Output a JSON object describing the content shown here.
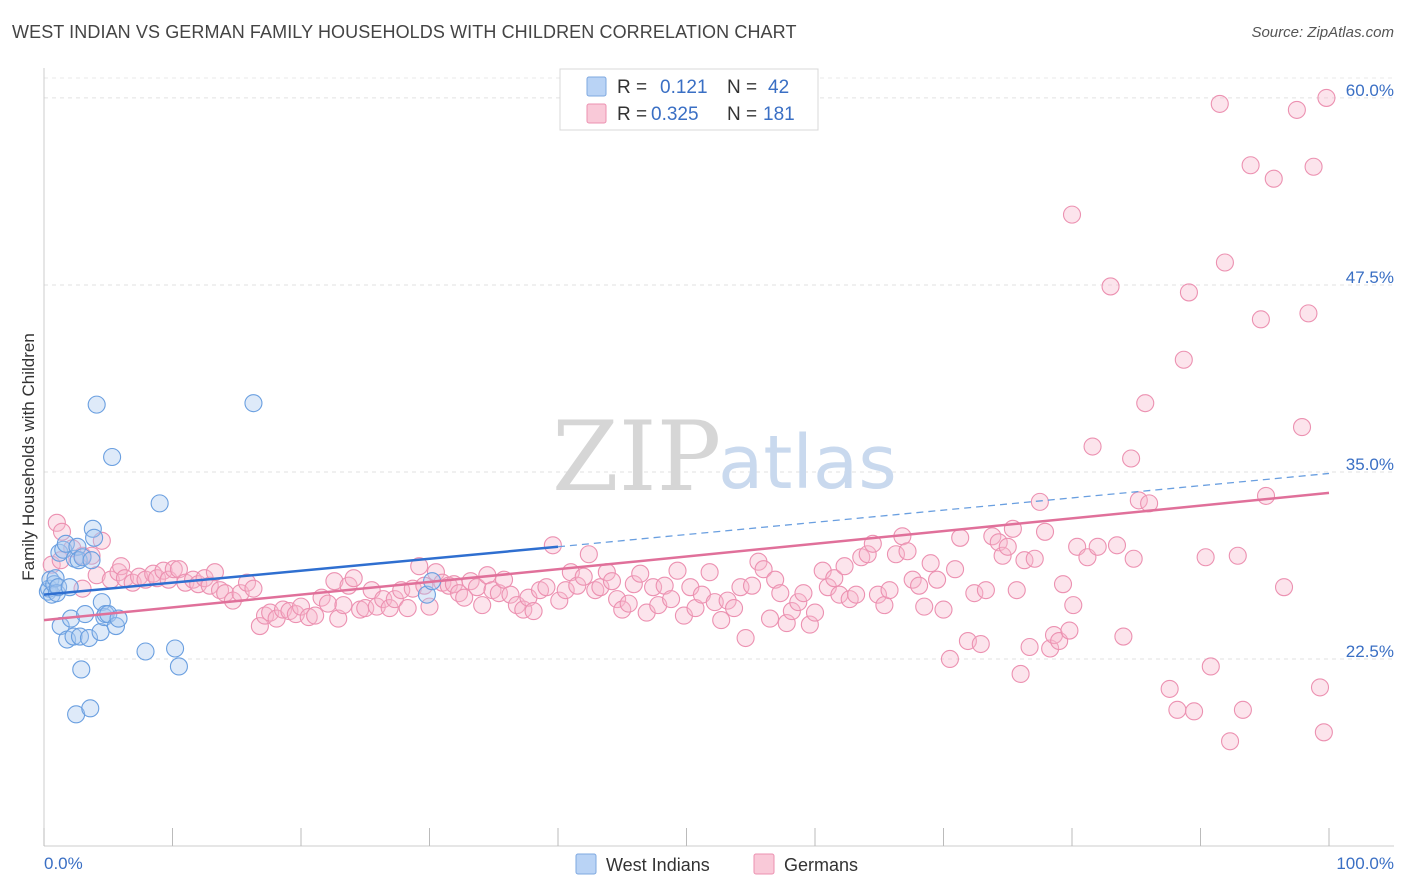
{
  "header": {
    "title": "WEST INDIAN VS GERMAN FAMILY HOUSEHOLDS WITH CHILDREN CORRELATION CHART",
    "source": "Source: ZipAtlas.com"
  },
  "watermark": {
    "zip": "ZIP",
    "atlas": "atlas"
  },
  "legend": {
    "rows": [
      {
        "r_label": "R =",
        "r_value": "0.121",
        "n_label": "N =",
        "n_value": "42",
        "color": "#a8c8f0"
      },
      {
        "r_label": "R =",
        "r_value": "0.325",
        "n_label": "N =",
        "n_value": "181",
        "color": "#f7b8cc"
      }
    ]
  },
  "bottom_legend": {
    "items": [
      {
        "label": "West Indians"
      },
      {
        "label": "Germans"
      }
    ]
  },
  "chart_data": {
    "type": "scatter",
    "title": "WEST INDIAN VS GERMAN FAMILY HOUSEHOLDS WITH CHILDREN CORRELATION CHART",
    "xlabel": "",
    "ylabel": "Family Households with Children",
    "xlim": [
      0,
      100
    ],
    "ylim": [
      10,
      62
    ],
    "x_tick_labels": [
      "0.0%",
      "100.0%"
    ],
    "y_ticks": [
      22.5,
      35.0,
      47.5,
      60.0
    ],
    "y_tick_labels": [
      "22.5%",
      "35.0%",
      "47.5%",
      "60.0%"
    ],
    "grid": true,
    "colors": {
      "west_indian": "#6a9fe0",
      "west_indian_fill": "#a8c8f0",
      "german": "#e87aa0",
      "german_fill": "#f7b8cc",
      "tick": "#3a6fc4"
    },
    "series": [
      {
        "name": "West Indians",
        "trend": {
          "x": [
            0,
            40
          ],
          "y": [
            26.8,
            30.0
          ],
          "dashed_extension": {
            "x": [
              40,
              100
            ],
            "y": [
              30.0,
              34.9
            ]
          }
        },
        "points": [
          [
            0.3,
            27.0
          ],
          [
            0.4,
            27.2
          ],
          [
            0.5,
            27.8
          ],
          [
            0.6,
            26.8
          ],
          [
            0.8,
            27.5
          ],
          [
            0.9,
            27.9
          ],
          [
            1.0,
            26.9
          ],
          [
            1.1,
            27.3
          ],
          [
            1.2,
            29.6
          ],
          [
            1.3,
            24.7
          ],
          [
            1.5,
            29.8
          ],
          [
            1.7,
            30.2
          ],
          [
            1.8,
            23.8
          ],
          [
            2.0,
            27.3
          ],
          [
            2.1,
            25.2
          ],
          [
            2.3,
            24.0
          ],
          [
            2.4,
            29.2
          ],
          [
            2.5,
            18.8
          ],
          [
            2.6,
            30.0
          ],
          [
            2.7,
            29.1
          ],
          [
            2.8,
            24.0
          ],
          [
            2.9,
            21.8
          ],
          [
            3.0,
            29.3
          ],
          [
            3.2,
            25.5
          ],
          [
            3.5,
            23.9
          ],
          [
            3.6,
            19.2
          ],
          [
            3.7,
            29.1
          ],
          [
            3.8,
            31.2
          ],
          [
            3.9,
            30.6
          ],
          [
            4.1,
            39.5
          ],
          [
            4.4,
            24.3
          ],
          [
            4.5,
            26.3
          ],
          [
            4.7,
            25.3
          ],
          [
            4.8,
            25.5
          ],
          [
            5.0,
            25.5
          ],
          [
            5.3,
            36.0
          ],
          [
            5.6,
            24.7
          ],
          [
            5.8,
            25.2
          ],
          [
            7.9,
            23.0
          ],
          [
            9.0,
            32.9
          ],
          [
            10.2,
            23.2
          ],
          [
            10.5,
            22.0
          ],
          [
            16.3,
            39.6
          ],
          [
            29.8,
            26.8
          ],
          [
            30.2,
            27.7
          ]
        ]
      },
      {
        "name": "Germans",
        "trend": {
          "x": [
            0,
            100
          ],
          "y": [
            25.1,
            33.6
          ]
        },
        "points": [
          [
            0.6,
            28.8
          ],
          [
            1.0,
            31.6
          ],
          [
            1.3,
            29.1
          ],
          [
            1.4,
            31.0
          ],
          [
            2.2,
            29.9
          ],
          [
            3.0,
            29.4
          ],
          [
            3.0,
            27.2
          ],
          [
            3.7,
            29.4
          ],
          [
            4.1,
            28.1
          ],
          [
            4.5,
            30.4
          ],
          [
            5.2,
            27.8
          ],
          [
            5.8,
            28.3
          ],
          [
            6.0,
            28.7
          ],
          [
            6.3,
            27.9
          ],
          [
            6.9,
            27.6
          ],
          [
            7.4,
            28.0
          ],
          [
            7.9,
            27.8
          ],
          [
            8.5,
            28.2
          ],
          [
            8.8,
            27.9
          ],
          [
            9.3,
            28.4
          ],
          [
            9.7,
            27.8
          ],
          [
            10.1,
            28.5
          ],
          [
            10.5,
            28.5
          ],
          [
            11.0,
            27.6
          ],
          [
            11.6,
            27.8
          ],
          [
            12.0,
            27.5
          ],
          [
            12.5,
            27.9
          ],
          [
            12.9,
            27.4
          ],
          [
            13.3,
            28.3
          ],
          [
            13.7,
            27.1
          ],
          [
            14.1,
            26.9
          ],
          [
            14.7,
            26.4
          ],
          [
            15.3,
            26.9
          ],
          [
            15.8,
            27.6
          ],
          [
            16.3,
            27.2
          ],
          [
            16.8,
            24.7
          ],
          [
            17.2,
            25.4
          ],
          [
            17.6,
            25.6
          ],
          [
            18.1,
            25.2
          ],
          [
            18.6,
            25.8
          ],
          [
            19.1,
            25.7
          ],
          [
            19.6,
            25.5
          ],
          [
            20.0,
            26.0
          ],
          [
            20.6,
            25.3
          ],
          [
            21.1,
            25.4
          ],
          [
            21.6,
            26.6
          ],
          [
            22.1,
            26.2
          ],
          [
            22.6,
            27.7
          ],
          [
            22.9,
            25.2
          ],
          [
            23.3,
            26.1
          ],
          [
            23.7,
            27.4
          ],
          [
            24.1,
            27.9
          ],
          [
            24.6,
            25.8
          ],
          [
            25.0,
            25.9
          ],
          [
            25.5,
            27.1
          ],
          [
            25.9,
            26.0
          ],
          [
            26.4,
            26.5
          ],
          [
            26.9,
            25.9
          ],
          [
            27.3,
            26.5
          ],
          [
            27.8,
            27.1
          ],
          [
            28.3,
            25.9
          ],
          [
            28.7,
            27.2
          ],
          [
            29.2,
            28.7
          ],
          [
            29.6,
            27.4
          ],
          [
            30.0,
            26.0
          ],
          [
            30.5,
            28.3
          ],
          [
            31.0,
            27.6
          ],
          [
            31.5,
            27.4
          ],
          [
            31.9,
            27.5
          ],
          [
            32.3,
            26.9
          ],
          [
            32.7,
            26.6
          ],
          [
            33.2,
            27.7
          ],
          [
            33.7,
            27.3
          ],
          [
            34.1,
            26.1
          ],
          [
            34.5,
            28.1
          ],
          [
            34.9,
            27.1
          ],
          [
            35.4,
            26.9
          ],
          [
            35.8,
            27.8
          ],
          [
            36.3,
            26.8
          ],
          [
            36.8,
            26.1
          ],
          [
            37.3,
            25.8
          ],
          [
            37.7,
            26.6
          ],
          [
            38.1,
            25.7
          ],
          [
            38.6,
            27.1
          ],
          [
            39.1,
            27.3
          ],
          [
            39.6,
            30.1
          ],
          [
            40.1,
            26.4
          ],
          [
            40.6,
            27.1
          ],
          [
            41.0,
            28.3
          ],
          [
            41.5,
            27.4
          ],
          [
            42.0,
            28.0
          ],
          [
            42.4,
            29.5
          ],
          [
            42.9,
            27.1
          ],
          [
            43.3,
            27.3
          ],
          [
            43.8,
            28.3
          ],
          [
            44.2,
            27.7
          ],
          [
            44.6,
            26.5
          ],
          [
            45.0,
            25.8
          ],
          [
            45.5,
            26.2
          ],
          [
            45.9,
            27.5
          ],
          [
            46.4,
            28.2
          ],
          [
            46.9,
            25.6
          ],
          [
            47.4,
            27.3
          ],
          [
            47.8,
            26.1
          ],
          [
            48.3,
            27.4
          ],
          [
            48.8,
            26.5
          ],
          [
            49.3,
            28.4
          ],
          [
            49.8,
            25.4
          ],
          [
            50.3,
            27.3
          ],
          [
            50.7,
            25.9
          ],
          [
            51.2,
            26.8
          ],
          [
            51.8,
            28.3
          ],
          [
            52.2,
            26.3
          ],
          [
            52.7,
            25.1
          ],
          [
            53.2,
            26.4
          ],
          [
            53.7,
            25.9
          ],
          [
            54.2,
            27.3
          ],
          [
            54.6,
            23.9
          ],
          [
            55.1,
            27.4
          ],
          [
            55.6,
            29.0
          ],
          [
            56.0,
            28.5
          ],
          [
            56.5,
            25.2
          ],
          [
            56.9,
            27.8
          ],
          [
            57.3,
            26.9
          ],
          [
            57.8,
            24.9
          ],
          [
            58.2,
            25.7
          ],
          [
            58.7,
            26.3
          ],
          [
            59.1,
            26.9
          ],
          [
            59.6,
            24.8
          ],
          [
            60.0,
            25.6
          ],
          [
            60.6,
            28.4
          ],
          [
            61.0,
            27.3
          ],
          [
            61.5,
            27.9
          ],
          [
            61.9,
            26.8
          ],
          [
            62.3,
            28.7
          ],
          [
            62.7,
            26.5
          ],
          [
            63.2,
            26.8
          ],
          [
            63.6,
            29.3
          ],
          [
            64.1,
            29.5
          ],
          [
            64.5,
            30.2
          ],
          [
            64.9,
            26.8
          ],
          [
            65.4,
            26.1
          ],
          [
            65.8,
            27.1
          ],
          [
            66.3,
            29.5
          ],
          [
            66.8,
            30.7
          ],
          [
            67.2,
            29.7
          ],
          [
            67.6,
            27.8
          ],
          [
            68.1,
            27.4
          ],
          [
            68.5,
            26.0
          ],
          [
            69.0,
            28.9
          ],
          [
            69.5,
            27.8
          ],
          [
            70.0,
            25.8
          ],
          [
            70.5,
            22.5
          ],
          [
            70.9,
            28.5
          ],
          [
            71.3,
            30.6
          ],
          [
            71.9,
            23.7
          ],
          [
            72.4,
            26.9
          ],
          [
            72.9,
            23.5
          ],
          [
            73.3,
            27.1
          ],
          [
            73.8,
            30.7
          ],
          [
            74.3,
            30.3
          ],
          [
            74.6,
            29.4
          ],
          [
            75.0,
            30.0
          ],
          [
            75.4,
            31.2
          ],
          [
            75.7,
            27.1
          ],
          [
            76.0,
            21.5
          ],
          [
            76.3,
            29.1
          ],
          [
            76.7,
            23.3
          ],
          [
            77.1,
            29.2
          ],
          [
            77.5,
            33.0
          ],
          [
            77.9,
            31.0
          ],
          [
            78.3,
            23.2
          ],
          [
            78.6,
            24.1
          ],
          [
            79.0,
            23.7
          ],
          [
            79.3,
            27.5
          ],
          [
            79.8,
            24.4
          ],
          [
            80.1,
            26.1
          ],
          [
            80.4,
            30.0
          ],
          [
            81.2,
            29.3
          ],
          [
            81.6,
            36.7
          ],
          [
            82.0,
            30.0
          ],
          [
            83.0,
            47.4
          ],
          [
            83.5,
            30.1
          ],
          [
            84.0,
            24.0
          ],
          [
            84.6,
            35.9
          ],
          [
            84.8,
            29.2
          ],
          [
            85.2,
            33.1
          ],
          [
            85.7,
            39.6
          ],
          [
            86.0,
            32.9
          ],
          [
            87.6,
            20.5
          ],
          [
            88.2,
            19.1
          ],
          [
            88.7,
            42.5
          ],
          [
            89.1,
            47.0
          ],
          [
            89.5,
            19.0
          ],
          [
            90.4,
            29.3
          ],
          [
            90.8,
            22.0
          ],
          [
            91.5,
            59.6
          ],
          [
            91.9,
            49.0
          ],
          [
            92.3,
            17.0
          ],
          [
            92.9,
            29.4
          ],
          [
            93.3,
            19.1
          ],
          [
            93.9,
            55.5
          ],
          [
            94.7,
            45.2
          ],
          [
            95.1,
            33.4
          ],
          [
            95.7,
            54.6
          ],
          [
            96.5,
            27.3
          ],
          [
            97.5,
            59.2
          ],
          [
            97.9,
            38.0
          ],
          [
            98.4,
            45.6
          ],
          [
            98.8,
            55.4
          ],
          [
            99.3,
            20.6
          ],
          [
            99.6,
            17.6
          ],
          [
            99.8,
            60.0
          ],
          [
            80.0,
            52.2
          ]
        ]
      }
    ]
  }
}
